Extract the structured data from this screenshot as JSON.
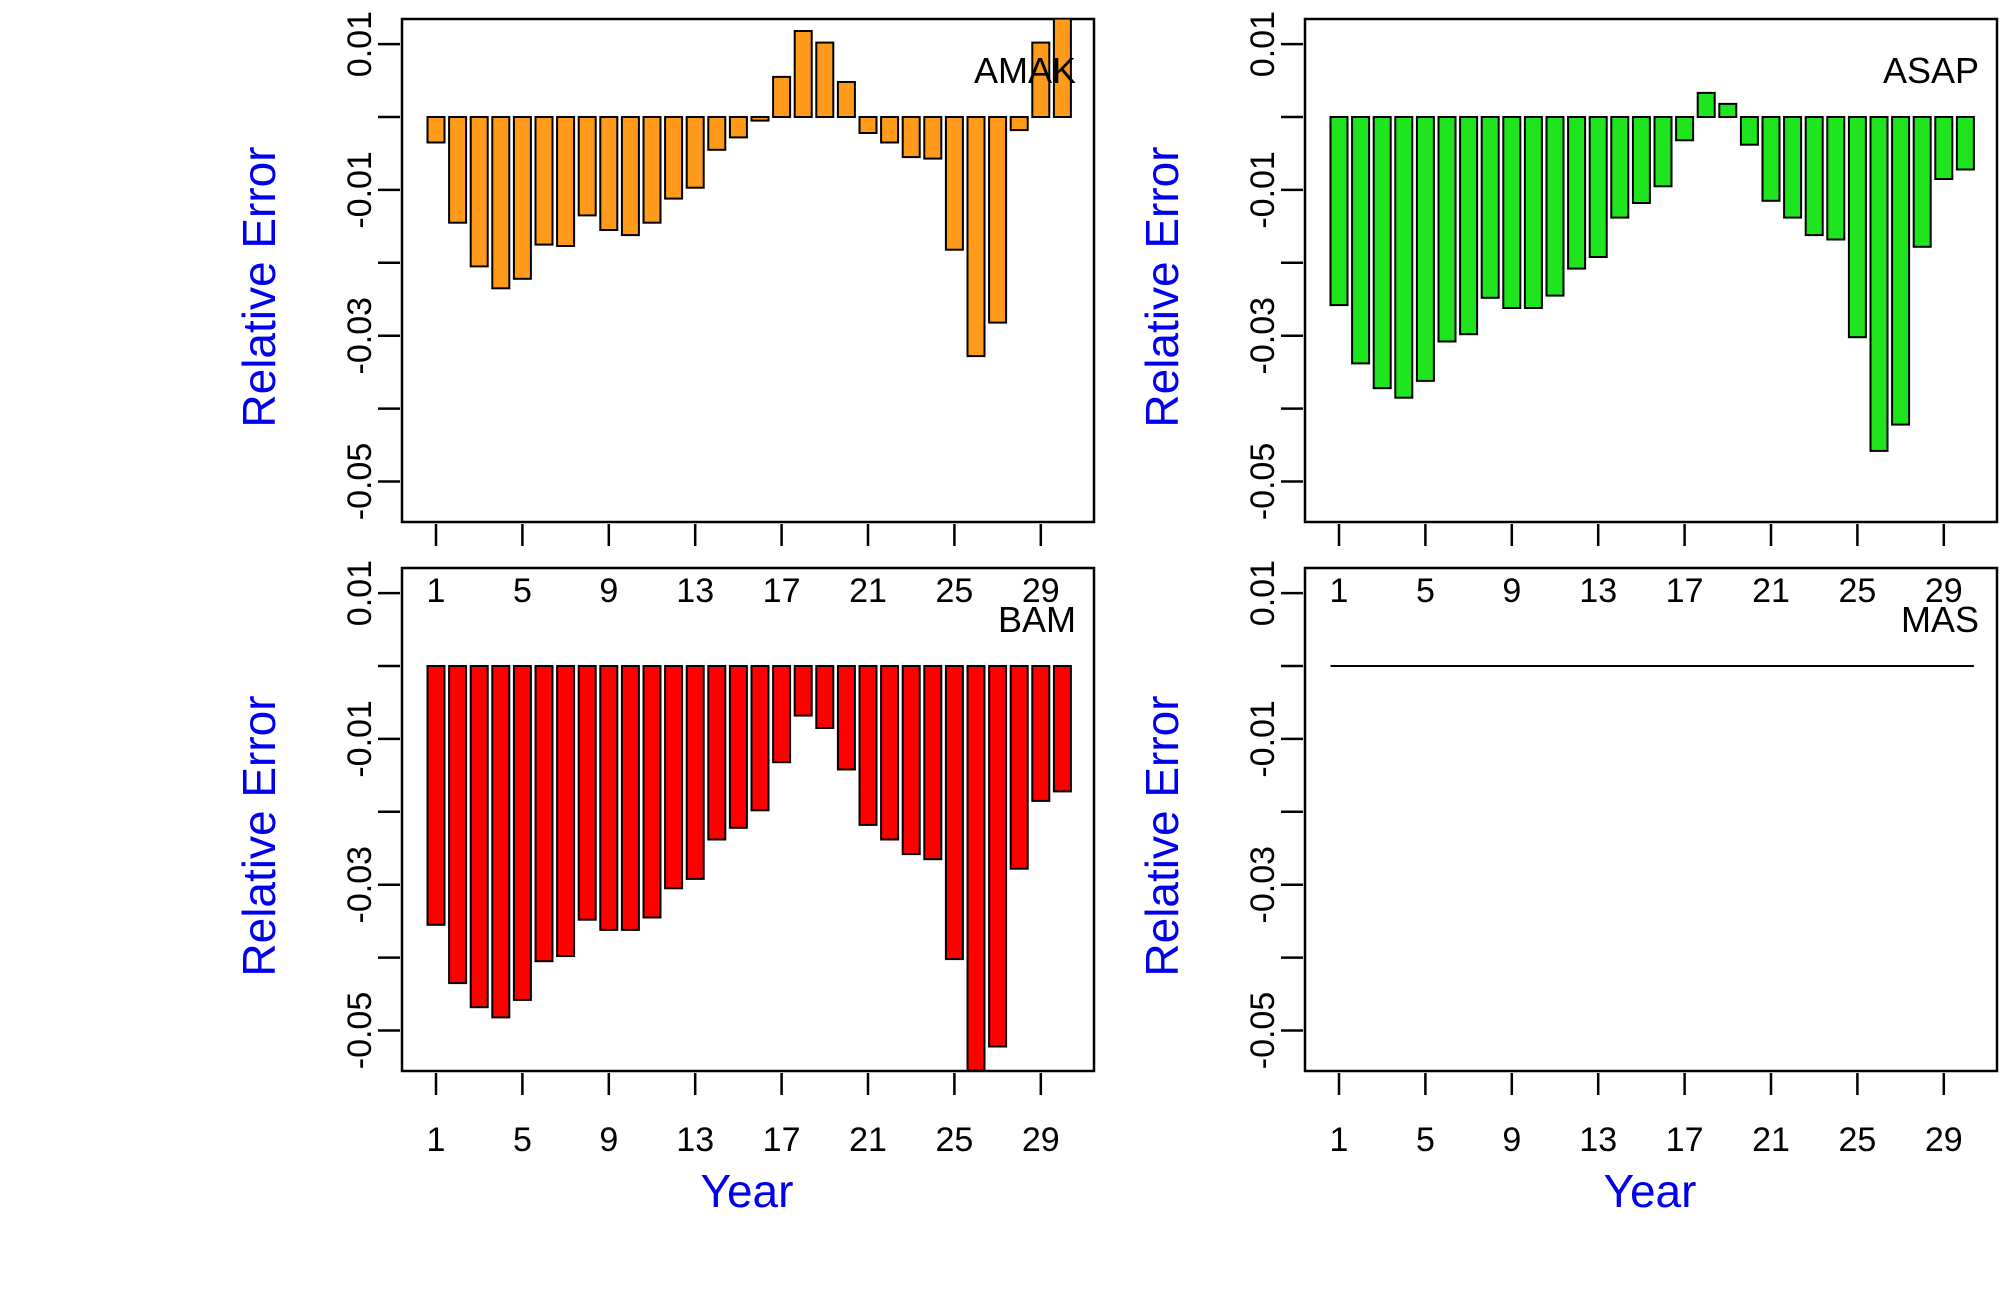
{
  "chart_data": [
    {
      "type": "bar",
      "label": "AMAK",
      "color": "#ff9a1a",
      "xlabel": "",
      "ylabel": "Relative Error",
      "x": [
        1,
        2,
        3,
        4,
        5,
        6,
        7,
        8,
        9,
        10,
        11,
        12,
        13,
        14,
        15,
        16,
        17,
        18,
        19,
        20,
        21,
        22,
        23,
        24,
        25,
        26,
        27,
        28,
        29,
        30
      ],
      "values": [
        -0.0035,
        -0.0145,
        -0.0205,
        -0.0235,
        -0.0222,
        -0.0175,
        -0.0177,
        -0.0135,
        -0.0155,
        -0.0162,
        -0.0145,
        -0.0112,
        -0.0097,
        -0.0045,
        -0.0028,
        -0.0005,
        0.0055,
        0.0118,
        0.0102,
        0.0048,
        -0.0022,
        -0.0035,
        -0.0055,
        -0.0057,
        -0.0182,
        -0.0328,
        -0.0282,
        -0.0018,
        0.0102,
        0.0135
      ],
      "x_ticks": [
        "1",
        "5",
        "9",
        "13",
        "17",
        "21",
        "25",
        "29"
      ],
      "y_ticks": [
        "0.01",
        "-0.01",
        "-0.03",
        "-0.05"
      ],
      "ylim": [
        -0.055,
        0.013
      ]
    },
    {
      "type": "bar",
      "label": "ASAP",
      "color": "#1ee51e",
      "xlabel": "",
      "ylabel": "Relative Error",
      "x": [
        1,
        2,
        3,
        4,
        5,
        6,
        7,
        8,
        9,
        10,
        11,
        12,
        13,
        14,
        15,
        16,
        17,
        18,
        19,
        20,
        21,
        22,
        23,
        24,
        25,
        26,
        27,
        28,
        29,
        30
      ],
      "values": [
        -0.0258,
        -0.0338,
        -0.0372,
        -0.0385,
        -0.0362,
        -0.0308,
        -0.0298,
        -0.0248,
        -0.0262,
        -0.0262,
        -0.0245,
        -0.0208,
        -0.0192,
        -0.0138,
        -0.0118,
        -0.0095,
        -0.0032,
        0.0033,
        0.0018,
        -0.0038,
        -0.0115,
        -0.0138,
        -0.0162,
        -0.0168,
        -0.0302,
        -0.0458,
        -0.0422,
        -0.0178,
        -0.0085,
        -0.0072
      ],
      "x_ticks": [
        "1",
        "5",
        "9",
        "13",
        "17",
        "21",
        "25",
        "29"
      ],
      "y_ticks": [
        "0.01",
        "-0.01",
        "-0.03",
        "-0.05"
      ],
      "ylim": [
        -0.055,
        0.013
      ]
    },
    {
      "type": "bar",
      "label": "BAM",
      "color": "#ff0000",
      "xlabel": "Year",
      "ylabel": "Relative Error",
      "x": [
        1,
        2,
        3,
        4,
        5,
        6,
        7,
        8,
        9,
        10,
        11,
        12,
        13,
        14,
        15,
        16,
        17,
        18,
        19,
        20,
        21,
        22,
        23,
        24,
        25,
        26,
        27,
        28,
        29,
        30
      ],
      "values": [
        -0.0355,
        -0.0435,
        -0.0468,
        -0.0482,
        -0.0458,
        -0.0405,
        -0.0398,
        -0.0348,
        -0.0362,
        -0.0362,
        -0.0345,
        -0.0305,
        -0.0292,
        -0.0238,
        -0.0222,
        -0.0198,
        -0.0132,
        -0.0068,
        -0.0085,
        -0.0142,
        -0.0218,
        -0.0238,
        -0.0258,
        -0.0265,
        -0.0402,
        -0.0555,
        -0.0522,
        -0.0278,
        -0.0185,
        -0.0172
      ],
      "x_ticks": [
        "1",
        "5",
        "9",
        "13",
        "17",
        "21",
        "25",
        "29"
      ],
      "y_ticks": [
        "0.01",
        "-0.01",
        "-0.03",
        "-0.05"
      ],
      "ylim": [
        -0.055,
        0.013
      ]
    },
    {
      "type": "bar",
      "label": "MAS",
      "color": "#ffffff",
      "xlabel": "Year",
      "ylabel": "Relative Error",
      "x": [
        1,
        2,
        3,
        4,
        5,
        6,
        7,
        8,
        9,
        10,
        11,
        12,
        13,
        14,
        15,
        16,
        17,
        18,
        19,
        20,
        21,
        22,
        23,
        24,
        25,
        26,
        27,
        28,
        29,
        30
      ],
      "values": [
        0,
        0,
        0,
        0,
        0,
        0,
        0,
        0,
        0,
        0,
        0,
        0,
        0,
        0,
        0,
        0,
        0,
        0,
        0,
        0,
        0,
        0,
        0,
        0,
        0,
        0,
        0,
        0,
        0,
        0
      ],
      "x_ticks": [
        "1",
        "5",
        "9",
        "13",
        "17",
        "21",
        "25",
        "29"
      ],
      "y_ticks": [
        "0.01",
        "-0.01",
        "-0.03",
        "-0.05"
      ],
      "ylim": [
        -0.055,
        0.013
      ]
    }
  ]
}
